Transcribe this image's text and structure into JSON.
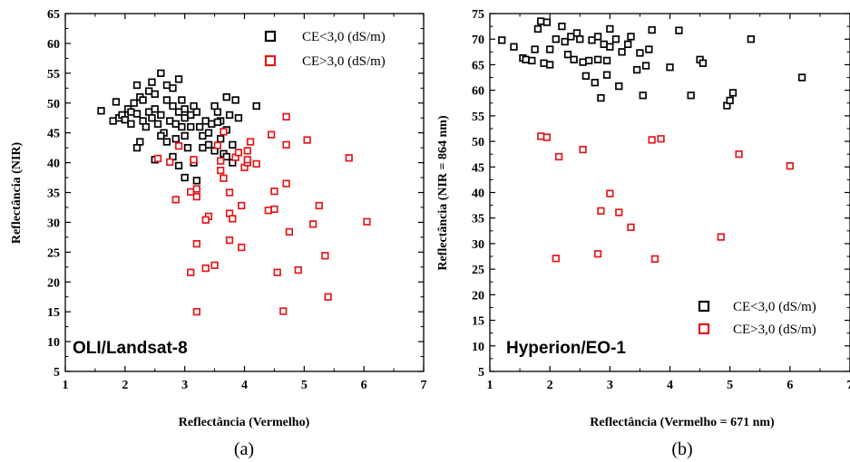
{
  "chart_data": [
    {
      "type": "scatter",
      "subfigure": "(a)",
      "panel_label": "OLI/Landsat-8",
      "xlabel": "Reflectância (Vermelho)",
      "ylabel": "Reflectância (NIR)",
      "xlim": [
        1,
        7
      ],
      "ylim": [
        5,
        65
      ],
      "xticks": [
        1,
        2,
        3,
        4,
        5,
        6,
        7
      ],
      "yticks": [
        5,
        10,
        15,
        20,
        25,
        30,
        35,
        40,
        45,
        50,
        55,
        60,
        65
      ],
      "legend_position": "top-right",
      "series": [
        {
          "name": "CE<3,0 (dS/m)",
          "color": "#000000",
          "points": [
            [
              1.6,
              48.7
            ],
            [
              1.8,
              47.0
            ],
            [
              1.85,
              50.2
            ],
            [
              1.9,
              47.5
            ],
            [
              1.95,
              48.0
            ],
            [
              2.0,
              47.2
            ],
            [
              2.05,
              49.0
            ],
            [
              2.1,
              48.5
            ],
            [
              2.1,
              46.5
            ],
            [
              2.15,
              50.0
            ],
            [
              2.2,
              53.0
            ],
            [
              2.2,
              48.2
            ],
            [
              2.25,
              51.0
            ],
            [
              2.25,
              43.5
            ],
            [
              2.2,
              42.5
            ],
            [
              2.3,
              50.5
            ],
            [
              2.3,
              47.0
            ],
            [
              2.35,
              46.0
            ],
            [
              2.4,
              52.0
            ],
            [
              2.4,
              48.5
            ],
            [
              2.45,
              53.5
            ],
            [
              2.45,
              47.5
            ],
            [
              2.5,
              51.5
            ],
            [
              2.5,
              49.0
            ],
            [
              2.55,
              46.5
            ],
            [
              2.6,
              55.0
            ],
            [
              2.6,
              48.0
            ],
            [
              2.65,
              45.0
            ],
            [
              2.7,
              53.0
            ],
            [
              2.7,
              50.5
            ],
            [
              2.75,
              47.0
            ],
            [
              2.8,
              52.5
            ],
            [
              2.8,
              49.5
            ],
            [
              2.85,
              46.5
            ],
            [
              2.85,
              44.0
            ],
            [
              2.9,
              54.0
            ],
            [
              2.9,
              48.5
            ],
            [
              2.95,
              50.5
            ],
            [
              2.95,
              46.0
            ],
            [
              3.0,
              49.0
            ],
            [
              3.0,
              47.5
            ],
            [
              3.0,
              44.5
            ],
            [
              3.05,
              42.5
            ],
            [
              3.1,
              48.0
            ],
            [
              3.1,
              46.0
            ],
            [
              3.15,
              49.5
            ],
            [
              3.2,
              48.5
            ],
            [
              3.25,
              46.0
            ],
            [
              3.3,
              44.5
            ],
            [
              3.35,
              47.0
            ],
            [
              3.4,
              45.0
            ],
            [
              3.4,
              43.0
            ],
            [
              3.45,
              46.5
            ],
            [
              3.5,
              49.5
            ],
            [
              3.55,
              48.5
            ],
            [
              3.6,
              47.0
            ],
            [
              3.6,
              44.0
            ],
            [
              3.65,
              41.5
            ],
            [
              3.7,
              51.0
            ],
            [
              3.7,
              45.5
            ],
            [
              3.75,
              48.0
            ],
            [
              3.8,
              43.0
            ],
            [
              3.85,
              50.5
            ],
            [
              3.9,
              47.5
            ],
            [
              3.5,
              42.0
            ],
            [
              3.0,
              37.5
            ],
            [
              3.2,
              37.0
            ],
            [
              2.9,
              39.5
            ],
            [
              2.8,
              41.0
            ],
            [
              2.7,
              43.5
            ],
            [
              2.5,
              40.5
            ],
            [
              3.7,
              41.0
            ],
            [
              3.8,
              40.0
            ],
            [
              3.15,
              40.0
            ],
            [
              4.2,
              49.5
            ],
            [
              3.3,
              42.5
            ],
            [
              3.55,
              46.8
            ],
            [
              2.6,
              44.5
            ]
          ]
        },
        {
          "name": "CE>3,0 (dS/m)",
          "color": "#e4181c",
          "points": [
            [
              2.55,
              40.7
            ],
            [
              2.75,
              40.1
            ],
            [
              2.9,
              42.8
            ],
            [
              2.85,
              33.8
            ],
            [
              3.1,
              35.1
            ],
            [
              3.15,
              40.5
            ],
            [
              3.2,
              35.6
            ],
            [
              3.2,
              34.3
            ],
            [
              3.2,
              26.4
            ],
            [
              3.1,
              21.6
            ],
            [
              3.2,
              15.0
            ],
            [
              3.35,
              22.3
            ],
            [
              3.4,
              31.0
            ],
            [
              3.35,
              30.4
            ],
            [
              3.5,
              22.8
            ],
            [
              3.55,
              42.9
            ],
            [
              3.6,
              38.7
            ],
            [
              3.6,
              40.3
            ],
            [
              3.65,
              45.2
            ],
            [
              3.75,
              35.0
            ],
            [
              3.75,
              31.5
            ],
            [
              3.75,
              27.0
            ],
            [
              3.8,
              30.6
            ],
            [
              3.85,
              40.9
            ],
            [
              3.9,
              41.7
            ],
            [
              3.95,
              32.8
            ],
            [
              3.95,
              25.8
            ],
            [
              4.0,
              39.2
            ],
            [
              4.05,
              40.0
            ],
            [
              4.05,
              42.0
            ],
            [
              4.1,
              43.5
            ],
            [
              4.2,
              39.8
            ],
            [
              4.4,
              32.0
            ],
            [
              4.45,
              44.7
            ],
            [
              4.5,
              35.2
            ],
            [
              4.5,
              32.2
            ],
            [
              4.55,
              21.6
            ],
            [
              4.65,
              15.1
            ],
            [
              4.7,
              47.7
            ],
            [
              4.7,
              43.0
            ],
            [
              4.7,
              36.5
            ],
            [
              4.75,
              28.4
            ],
            [
              4.9,
              22.0
            ],
            [
              5.05,
              43.8
            ],
            [
              5.15,
              29.7
            ],
            [
              5.25,
              32.8
            ],
            [
              5.35,
              24.4
            ],
            [
              5.4,
              17.5
            ],
            [
              5.75,
              40.8
            ],
            [
              6.05,
              30.1
            ],
            [
              4.05,
              40.5
            ],
            [
              3.65,
              37.4
            ]
          ]
        }
      ]
    },
    {
      "type": "scatter",
      "subfigure": "(b)",
      "panel_label": "Hyperion/EO-1",
      "xlabel": "Reflectância (Vermelho = 671 nm)",
      "ylabel": "Reflectância (NIR = 864 nm)",
      "xlim": [
        1,
        7
      ],
      "ylim": [
        5,
        75
      ],
      "xticks": [
        1,
        2,
        3,
        4,
        5,
        6,
        7
      ],
      "yticks": [
        5,
        10,
        15,
        20,
        25,
        30,
        35,
        40,
        45,
        50,
        55,
        60,
        65,
        70,
        75
      ],
      "legend_position": "bottom-right",
      "series": [
        {
          "name": "CE<3,0 (dS/m)",
          "color": "#000000",
          "points": [
            [
              1.2,
              69.8
            ],
            [
              1.4,
              68.5
            ],
            [
              1.55,
              66.3
            ],
            [
              1.6,
              66.0
            ],
            [
              1.7,
              65.8
            ],
            [
              1.75,
              68.0
            ],
            [
              1.8,
              72.0
            ],
            [
              1.85,
              73.5
            ],
            [
              1.9,
              65.3
            ],
            [
              1.95,
              73.3
            ],
            [
              2.0,
              68.0
            ],
            [
              2.0,
              65.0
            ],
            [
              2.1,
              70.0
            ],
            [
              2.2,
              72.5
            ],
            [
              2.25,
              69.5
            ],
            [
              2.3,
              67.0
            ],
            [
              2.35,
              70.5
            ],
            [
              2.4,
              66.0
            ],
            [
              2.45,
              71.2
            ],
            [
              2.5,
              70.0
            ],
            [
              2.55,
              65.5
            ],
            [
              2.6,
              62.8
            ],
            [
              2.65,
              65.8
            ],
            [
              2.7,
              69.8
            ],
            [
              2.75,
              61.5
            ],
            [
              2.8,
              70.5
            ],
            [
              2.8,
              66.0
            ],
            [
              2.85,
              58.5
            ],
            [
              2.9,
              69.0
            ],
            [
              2.95,
              65.8
            ],
            [
              3.0,
              72.0
            ],
            [
              3.0,
              68.5
            ],
            [
              3.1,
              70.0
            ],
            [
              3.15,
              60.8
            ],
            [
              3.2,
              67.5
            ],
            [
              3.3,
              69.0
            ],
            [
              3.35,
              70.5
            ],
            [
              3.45,
              64.0
            ],
            [
              3.5,
              67.3
            ],
            [
              3.55,
              59.0
            ],
            [
              3.6,
              64.8
            ],
            [
              3.65,
              68.0
            ],
            [
              3.7,
              71.8
            ],
            [
              4.0,
              64.5
            ],
            [
              4.15,
              71.7
            ],
            [
              4.35,
              59.0
            ],
            [
              4.5,
              66.0
            ],
            [
              4.55,
              65.3
            ],
            [
              4.95,
              57.0
            ],
            [
              5.0,
              58.0
            ],
            [
              5.05,
              59.5
            ],
            [
              5.35,
              70.0
            ],
            [
              6.2,
              62.5
            ],
            [
              2.95,
              63.0
            ]
          ]
        },
        {
          "name": "CE>3,0 (dS/m)",
          "color": "#e4181c",
          "points": [
            [
              1.85,
              51.0
            ],
            [
              1.95,
              50.8
            ],
            [
              2.15,
              47.0
            ],
            [
              2.1,
              27.1
            ],
            [
              2.55,
              48.4
            ],
            [
              2.8,
              28.0
            ],
            [
              2.85,
              36.4
            ],
            [
              3.0,
              39.8
            ],
            [
              3.15,
              36.1
            ],
            [
              3.35,
              33.2
            ],
            [
              3.7,
              50.3
            ],
            [
              3.75,
              27.0
            ],
            [
              3.85,
              50.5
            ],
            [
              4.85,
              31.3
            ],
            [
              5.15,
              47.5
            ],
            [
              6.0,
              45.2
            ]
          ]
        }
      ]
    }
  ]
}
